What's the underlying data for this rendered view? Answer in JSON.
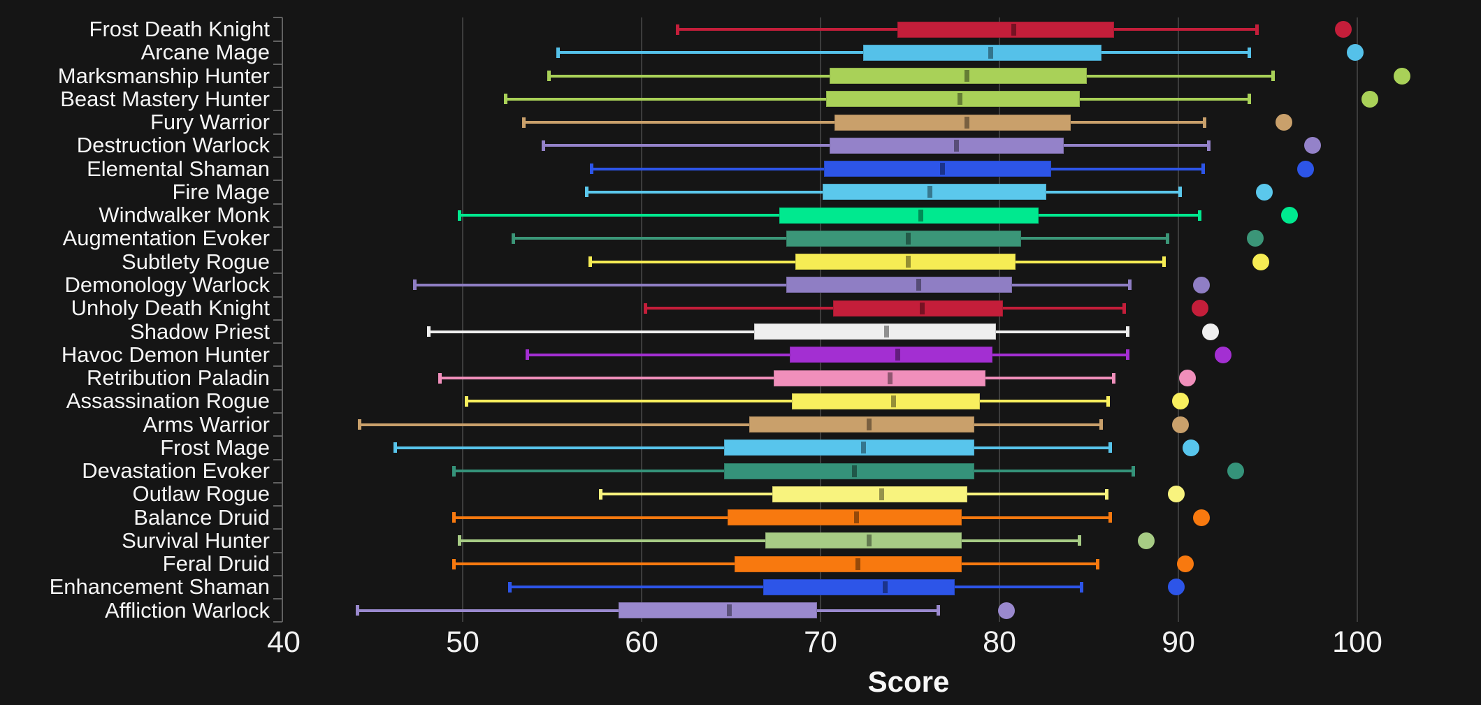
{
  "chart_data": {
    "type": "boxplot",
    "orientation": "horizontal",
    "title": "",
    "xlabel": "Score",
    "ylabel": "",
    "x_ticks": [
      40,
      50,
      60,
      70,
      80,
      90,
      100
    ],
    "x_range": [
      40,
      107
    ],
    "grid": "vertical-only",
    "legend": "none",
    "style": {
      "background": "#151515",
      "grid_color": "#3C3C3C",
      "axis_color": "#616161",
      "text_color": "#F5F5F5"
    },
    "rows": [
      {
        "label": "Frost Death Knight",
        "color": "#C41E3A",
        "low": 62.0,
        "q1": 74.3,
        "median": 80.8,
        "q3": 86.4,
        "high": 94.4,
        "outlier": 99.2
      },
      {
        "label": "Arcane Mage",
        "color": "#55C1E9",
        "low": 55.3,
        "q1": 72.4,
        "median": 79.5,
        "q3": 85.7,
        "high": 94.0,
        "outlier": 99.9
      },
      {
        "label": "Marksmanship Hunter",
        "color": "#A9D158",
        "low": 54.8,
        "q1": 70.5,
        "median": 78.2,
        "q3": 84.9,
        "high": 95.3,
        "outlier": 102.5
      },
      {
        "label": "Beast Mastery Hunter",
        "color": "#A9D158",
        "low": 52.4,
        "q1": 70.3,
        "median": 77.8,
        "q3": 84.5,
        "high": 94.0,
        "outlier": 100.7
      },
      {
        "label": "Fury Warrior",
        "color": "#C9A06B",
        "low": 53.4,
        "q1": 70.8,
        "median": 78.2,
        "q3": 84.0,
        "high": 91.5,
        "outlier": 95.9
      },
      {
        "label": "Destruction Warlock",
        "color": "#9482C9",
        "low": 54.5,
        "q1": 70.5,
        "median": 77.6,
        "q3": 83.6,
        "high": 91.7,
        "outlier": 97.5
      },
      {
        "label": "Elemental Shaman",
        "color": "#2D55E8",
        "low": 57.2,
        "q1": 70.2,
        "median": 76.8,
        "q3": 82.9,
        "high": 91.4,
        "outlier": 97.1
      },
      {
        "label": "Fire Mage",
        "color": "#5BC8EC",
        "low": 56.9,
        "q1": 70.1,
        "median": 76.1,
        "q3": 82.6,
        "high": 90.1,
        "outlier": 94.8
      },
      {
        "label": "Windwalker Monk",
        "color": "#00E98F",
        "low": 49.8,
        "q1": 67.7,
        "median": 75.6,
        "q3": 82.2,
        "high": 91.2,
        "outlier": 96.2
      },
      {
        "label": "Augmentation Evoker",
        "color": "#3B9678",
        "low": 52.8,
        "q1": 68.1,
        "median": 74.9,
        "q3": 81.2,
        "high": 89.4,
        "outlier": 94.3
      },
      {
        "label": "Subtlety Rogue",
        "color": "#F6EC54",
        "low": 57.1,
        "q1": 68.6,
        "median": 74.9,
        "q3": 80.9,
        "high": 89.2,
        "outlier": 94.6
      },
      {
        "label": "Demonology Warlock",
        "color": "#8F7EC4",
        "low": 47.3,
        "q1": 68.1,
        "median": 75.5,
        "q3": 80.7,
        "high": 87.3,
        "outlier": 91.3
      },
      {
        "label": "Unholy Death Knight",
        "color": "#C41E3A",
        "low": 60.2,
        "q1": 70.7,
        "median": 75.7,
        "q3": 80.2,
        "high": 87.0,
        "outlier": 91.2
      },
      {
        "label": "Shadow Priest",
        "color": "#EFEFEF",
        "low": 48.1,
        "q1": 66.3,
        "median": 73.7,
        "q3": 79.8,
        "high": 87.2,
        "outlier": 91.8
      },
      {
        "label": "Havoc Demon Hunter",
        "color": "#A32FD2",
        "low": 53.6,
        "q1": 68.3,
        "median": 74.3,
        "q3": 79.6,
        "high": 87.2,
        "outlier": 92.5
      },
      {
        "label": "Retribution Paladin",
        "color": "#F08FBB",
        "low": 48.7,
        "q1": 67.4,
        "median": 73.9,
        "q3": 79.2,
        "high": 86.4,
        "outlier": 90.5
      },
      {
        "label": "Assassination Rogue",
        "color": "#F8EF5E",
        "low": 50.2,
        "q1": 68.4,
        "median": 74.1,
        "q3": 78.9,
        "high": 86.1,
        "outlier": 90.1
      },
      {
        "label": "Arms Warrior",
        "color": "#C9A06B",
        "low": 44.2,
        "q1": 66.0,
        "median": 72.7,
        "q3": 78.6,
        "high": 85.7,
        "outlier": 90.1
      },
      {
        "label": "Frost Mage",
        "color": "#58C5EC",
        "low": 46.2,
        "q1": 64.6,
        "median": 72.4,
        "q3": 78.6,
        "high": 86.2,
        "outlier": 90.7
      },
      {
        "label": "Devastation Evoker",
        "color": "#35937A",
        "low": 49.5,
        "q1": 64.6,
        "median": 71.9,
        "q3": 78.6,
        "high": 87.5,
        "outlier": 93.2
      },
      {
        "label": "Outlaw Rogue",
        "color": "#F8F37E",
        "low": 57.7,
        "q1": 67.3,
        "median": 73.4,
        "q3": 78.2,
        "high": 86.0,
        "outlier": 89.9
      },
      {
        "label": "Balance Druid",
        "color": "#F8790F",
        "low": 49.5,
        "q1": 64.8,
        "median": 72.0,
        "q3": 77.9,
        "high": 86.2,
        "outlier": 91.3
      },
      {
        "label": "Survival Hunter",
        "color": "#A7CC85",
        "low": 49.8,
        "q1": 66.9,
        "median": 72.7,
        "q3": 77.9,
        "high": 84.5,
        "outlier": 88.2
      },
      {
        "label": "Feral Druid",
        "color": "#F8790F",
        "low": 49.5,
        "q1": 65.2,
        "median": 72.1,
        "q3": 77.9,
        "high": 85.5,
        "outlier": 90.4
      },
      {
        "label": "Enhancement Shaman",
        "color": "#2D55E8",
        "low": 52.6,
        "q1": 66.8,
        "median": 73.6,
        "q3": 77.5,
        "high": 84.6,
        "outlier": 89.9
      },
      {
        "label": "Affliction Warlock",
        "color": "#9A89CE",
        "low": 44.1,
        "q1": 58.7,
        "median": 64.9,
        "q3": 69.8,
        "high": 76.6,
        "outlier": 80.4
      }
    ]
  }
}
